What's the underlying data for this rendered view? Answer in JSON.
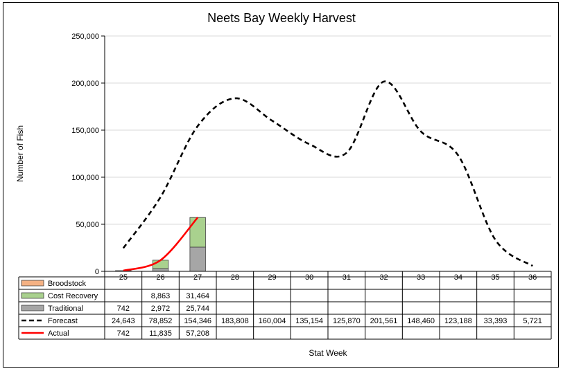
{
  "chart_data": {
    "type": "bar",
    "title": "Neets Bay Weekly Harvest",
    "xlabel": "Stat Week",
    "ylabel": "Number of Fish",
    "ylim": [
      0,
      250000
    ],
    "y_ticks": [
      "0",
      "50,000",
      "100,000",
      "150,000",
      "200,000",
      "250,000"
    ],
    "y_tick_values": [
      0,
      50000,
      100000,
      150000,
      200000,
      250000
    ],
    "grid": true,
    "categories": [
      "25",
      "26",
      "27",
      "28",
      "29",
      "30",
      "31",
      "32",
      "33",
      "34",
      "35",
      "36"
    ],
    "series": [
      {
        "name": "Broodstock",
        "kind": "stacked-bar",
        "color": "#f4b183",
        "values": [
          null,
          null,
          null,
          null,
          null,
          null,
          null,
          null,
          null,
          null,
          null,
          null
        ],
        "labels": [
          "",
          "",
          "",
          "",
          "",
          "",
          "",
          "",
          "",
          "",
          "",
          ""
        ]
      },
      {
        "name": "Cost Recovery",
        "kind": "stacked-bar",
        "color": "#a9d18e",
        "values": [
          null,
          8863,
          31464,
          null,
          null,
          null,
          null,
          null,
          null,
          null,
          null,
          null
        ],
        "labels": [
          "",
          "8,863",
          "31,464",
          "",
          "",
          "",
          "",
          "",
          "",
          "",
          "",
          ""
        ]
      },
      {
        "name": "Traditional",
        "kind": "stacked-bar",
        "color": "#a6a6a6",
        "values": [
          742,
          2972,
          25744,
          null,
          null,
          null,
          null,
          null,
          null,
          null,
          null,
          null
        ],
        "labels": [
          "742",
          "2,972",
          "25,744",
          "",
          "",
          "",
          "",
          "",
          "",
          "",
          "",
          ""
        ]
      },
      {
        "name": "Forecast",
        "kind": "line-dashed",
        "color": "#000000",
        "values": [
          24643,
          78852,
          154346,
          183808,
          160004,
          135154,
          125870,
          201561,
          148460,
          123188,
          33393,
          5721
        ],
        "labels": [
          "24,643",
          "78,852",
          "154,346",
          "183,808",
          "160,004",
          "135,154",
          "125,870",
          "201,561",
          "148,460",
          "123,188",
          "33,393",
          "5,721"
        ]
      },
      {
        "name": "Actual",
        "kind": "line",
        "color": "#ff0000",
        "values": [
          742,
          11835,
          57208,
          null,
          null,
          null,
          null,
          null,
          null,
          null,
          null,
          null
        ],
        "labels": [
          "742",
          "11,835",
          "57,208",
          "",
          "",
          "",
          "",
          "",
          "",
          "",
          "",
          ""
        ]
      }
    ]
  }
}
